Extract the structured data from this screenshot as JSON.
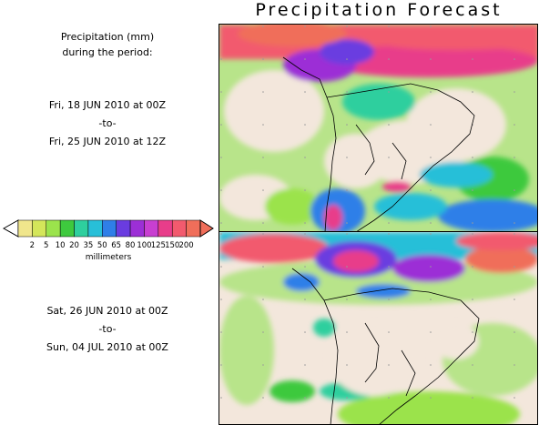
{
  "title": "Precipitation Forecast",
  "caption": {
    "line1": "Precipitation (mm)",
    "line2": "during the period:"
  },
  "period1": {
    "start": "Fri, 18 JUN 2010 at 00Z",
    "sep": "-to-",
    "end": "Fri, 25 JUN 2010 at 12Z"
  },
  "period2": {
    "start": "Sat, 26 JUN 2010 at 00Z",
    "sep": "-to-",
    "end": "Sun, 04 JUL 2010 at 00Z"
  },
  "legend": {
    "units": "millimeters",
    "values": [
      "2",
      "5",
      "10",
      "20",
      "35",
      "50",
      "65",
      "80",
      "100",
      "125",
      "150",
      "200"
    ],
    "colors": [
      "#f0e68c",
      "#d4e65a",
      "#9be34c",
      "#3ec93e",
      "#2ecf9e",
      "#28bfd8",
      "#2f7fe8",
      "#6a3ce0",
      "#9c2fd6",
      "#c83fd1",
      "#e83d8a",
      "#f25a6e",
      "#f06e5a"
    ]
  }
}
